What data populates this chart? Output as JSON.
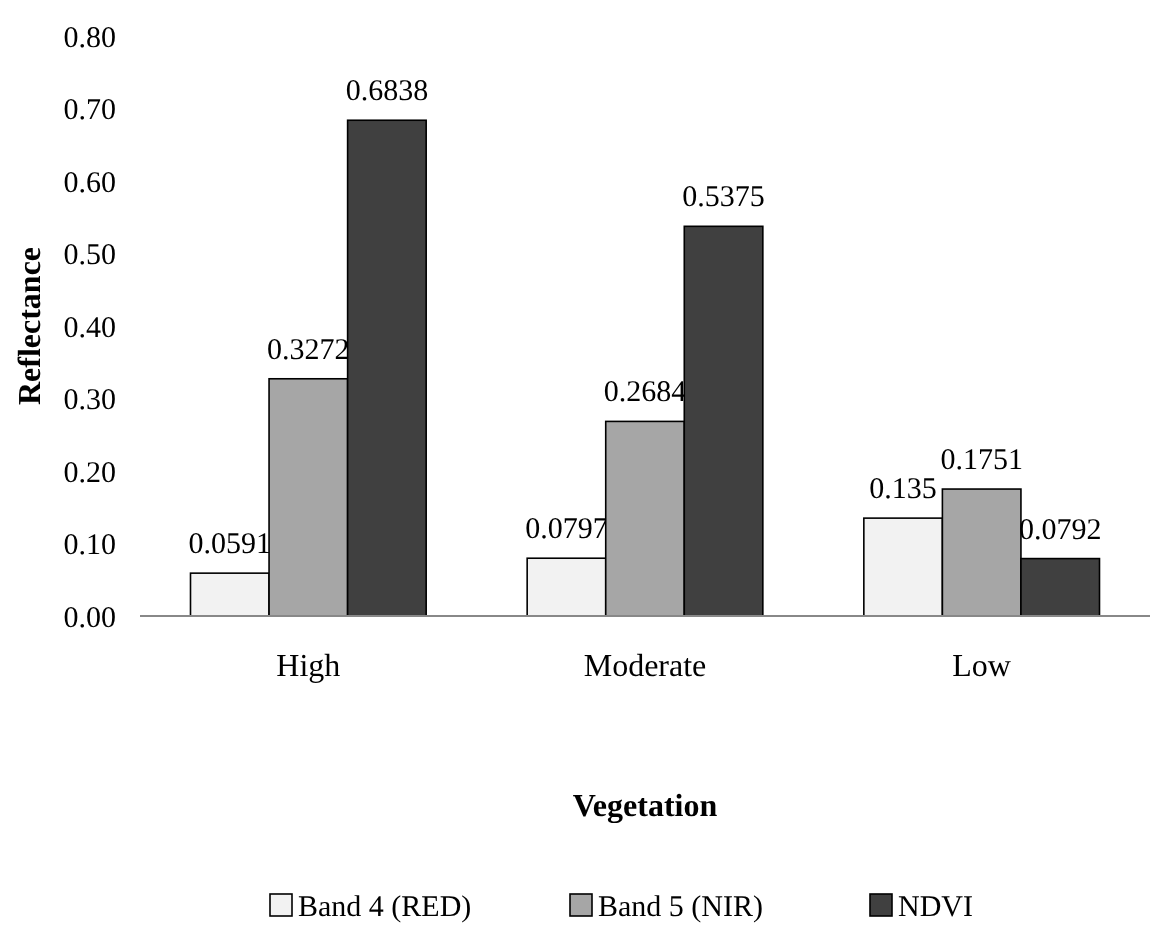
{
  "chart_data": {
    "type": "bar",
    "xlabel": "Vegetation",
    "ylabel": "Reflectance",
    "categories": [
      "High",
      "Moderate",
      "Low"
    ],
    "series": [
      {
        "name": "Band 4 (RED)",
        "color": "#f2f2f2",
        "values": [
          0.0591,
          0.0797,
          0.135
        ]
      },
      {
        "name": "Band 5 (NIR)",
        "color": "#a6a6a6",
        "values": [
          0.3272,
          0.2684,
          0.1751
        ]
      },
      {
        "name": "NDVI",
        "color": "#404040",
        "values": [
          0.6838,
          0.5375,
          0.0792
        ]
      }
    ],
    "ylim": [
      0,
      0.8
    ],
    "yticks": [
      {
        "value": 0,
        "label": "0.00"
      },
      {
        "value": 0.1,
        "label": "0.10"
      },
      {
        "value": 0.2,
        "label": "0.20"
      },
      {
        "value": 0.3,
        "label": "0.30"
      },
      {
        "value": 0.4,
        "label": "0.40"
      },
      {
        "value": 0.5,
        "label": "0.50"
      },
      {
        "value": 0.6,
        "label": "0.60"
      },
      {
        "value": 0.7,
        "label": "0.70"
      },
      {
        "value": 0.8,
        "label": "0.80"
      }
    ],
    "data_labels": true,
    "legend": "bottom",
    "grid": false
  }
}
